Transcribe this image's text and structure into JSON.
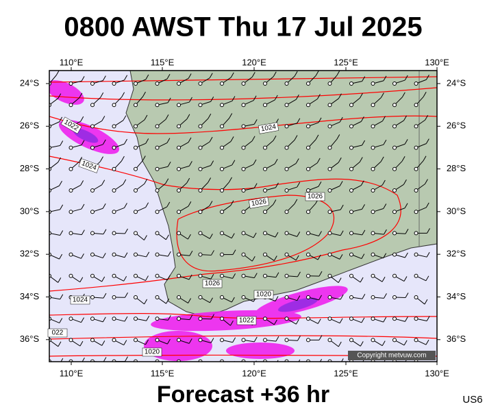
{
  "title": "0800 AWST Thu 17 Jul 2025",
  "longitude_labels": [
    "110°E",
    "115°E",
    "120°E",
    "125°E",
    "130°E"
  ],
  "latitude_labels": [
    "24°S",
    "26°S",
    "28°S",
    "30°S",
    "32°S",
    "34°S",
    "36°S"
  ],
  "isobar_labels": [
    "1022",
    "1024",
    "1024",
    "1026",
    "1026",
    "1026",
    "1024",
    "1020",
    "1022",
    "022",
    "1020"
  ],
  "copyright": "Copyright metvuw.com",
  "footer": "Forecast +36 hr",
  "code": "US6"
}
